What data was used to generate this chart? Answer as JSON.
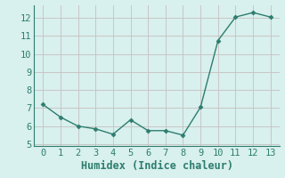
{
  "x": [
    0,
    1,
    2,
    3,
    4,
    5,
    6,
    7,
    8,
    9,
    10,
    11,
    12,
    13
  ],
  "y": [
    7.2,
    6.5,
    6.0,
    5.85,
    5.55,
    6.35,
    5.75,
    5.75,
    5.5,
    7.05,
    10.75,
    12.05,
    12.3,
    12.05
  ],
  "xlabel": "Humidex (Indice chaleur)",
  "ylim": [
    4.9,
    12.7
  ],
  "xlim": [
    -0.5,
    13.5
  ],
  "yticks": [
    5,
    6,
    7,
    8,
    9,
    10,
    11,
    12
  ],
  "xticks": [
    0,
    1,
    2,
    3,
    4,
    5,
    6,
    7,
    8,
    9,
    10,
    11,
    12,
    13
  ],
  "line_color": "#2d7d6e",
  "marker_color": "#2d7d6e",
  "bg_color": "#d8f0ee",
  "grid_color": "#c8c0c0",
  "xlabel_fontsize": 8.5,
  "tick_fontsize": 7.5
}
